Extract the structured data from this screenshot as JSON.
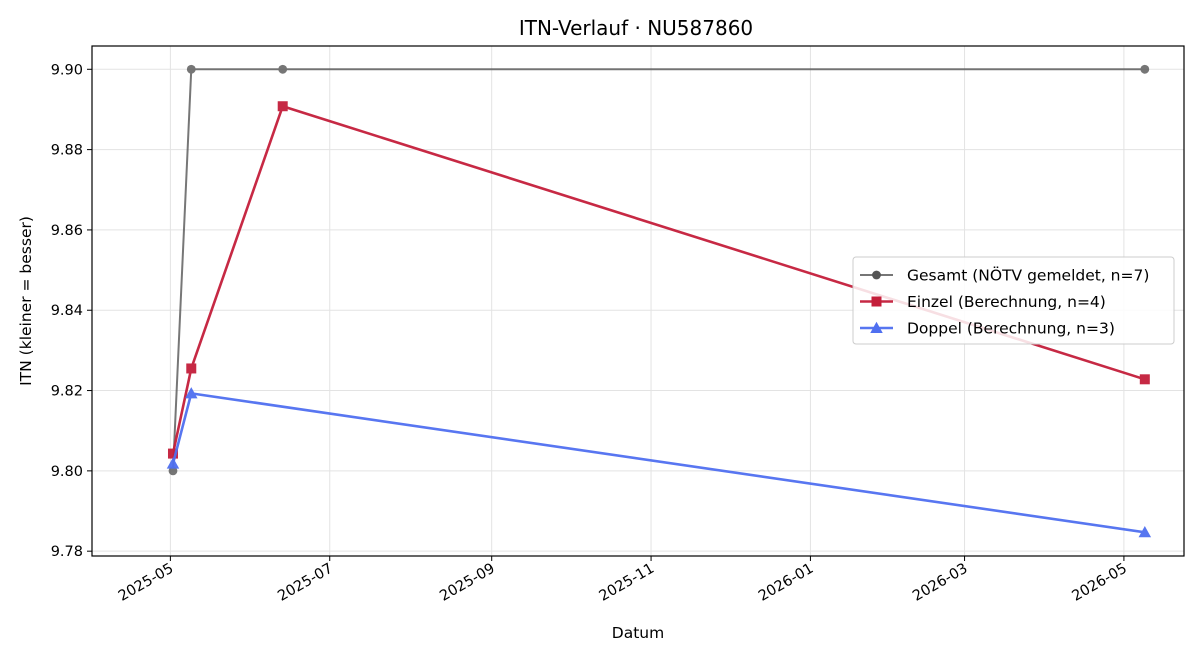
{
  "chart_data": {
    "type": "line",
    "title": "ITN-Verlauf · NU587860",
    "xlabel": "Datum",
    "ylabel": "ITN  (kleiner = besser)",
    "xlim": [
      "2025-04-01",
      "2026-05-24"
    ],
    "ylim": [
      9.7788,
      9.9058
    ],
    "yticks": [
      9.78,
      9.8,
      9.82,
      9.84,
      9.86,
      9.88,
      9.9
    ],
    "ytick_labels": [
      "9.78",
      "9.80",
      "9.82",
      "9.84",
      "9.86",
      "9.88",
      "9.90"
    ],
    "xticks": [
      "2025-05-01",
      "2025-07-01",
      "2025-09-01",
      "2025-11-01",
      "2026-01-01",
      "2026-03-01",
      "2026-05-01"
    ],
    "xtick_labels": [
      "2025-05",
      "2025-07",
      "2025-09",
      "2025-11",
      "2026-01",
      "2026-03",
      "2026-05"
    ],
    "grid": true,
    "legend_position": "center-right",
    "series": [
      {
        "name": "Gesamt (NÖTV gemeldet, n=7)",
        "color": "#555555",
        "marker": "circle",
        "points": [
          {
            "x": "2025-05-02",
            "y": 9.8
          },
          {
            "x": "2025-05-09",
            "y": 9.9
          },
          {
            "x": "2025-06-13",
            "y": 9.9
          },
          {
            "x": "2026-05-09",
            "y": 9.9
          }
        ]
      },
      {
        "name": "Einzel (Berechnung, n=4)",
        "color": "#c41e3a",
        "marker": "square",
        "points": [
          {
            "x": "2025-05-02",
            "y": 9.8043
          },
          {
            "x": "2025-05-09",
            "y": 9.8255
          },
          {
            "x": "2025-06-13",
            "y": 9.8908
          },
          {
            "x": "2026-05-09",
            "y": 9.8228
          }
        ]
      },
      {
        "name": "Doppel (Berechnung, n=3)",
        "color": "#4f6ff0",
        "marker": "triangle",
        "points": [
          {
            "x": "2025-05-02",
            "y": 9.8018
          },
          {
            "x": "2025-05-09",
            "y": 9.8193
          },
          {
            "x": "2026-05-09",
            "y": 9.7847
          }
        ]
      }
    ]
  }
}
